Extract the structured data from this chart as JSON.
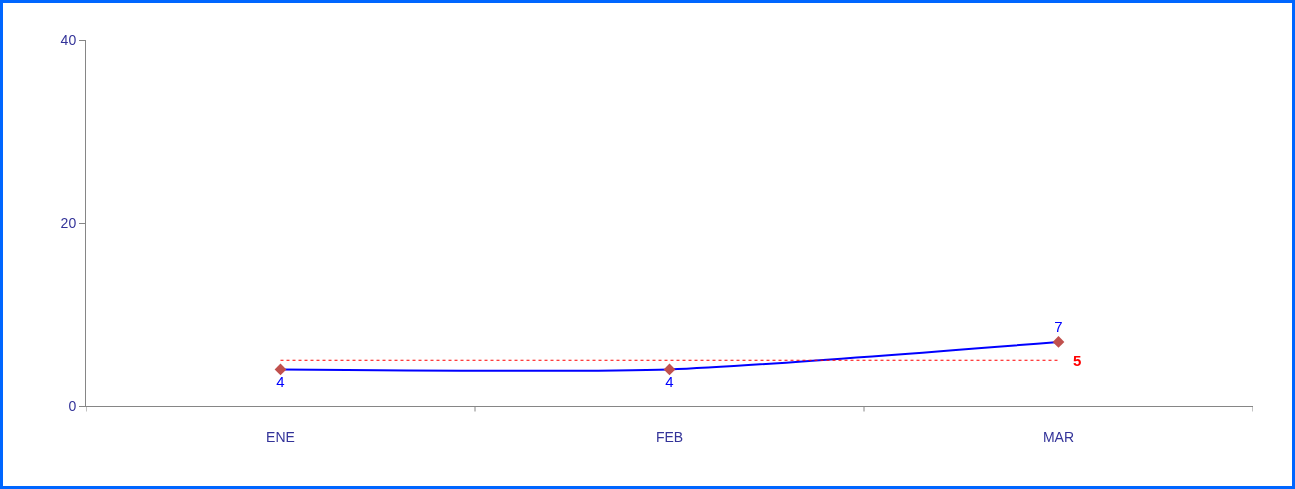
{
  "chart_data": {
    "type": "line",
    "categories": [
      "ENE",
      "FEB",
      "MAR"
    ],
    "series": [
      {
        "color": "#0000ff",
        "values": [
          4,
          4,
          7
        ]
      }
    ],
    "marker": "diamond",
    "data_labels": true,
    "line_style": "solid",
    "ylim": [
      0,
      40
    ],
    "yticks": [
      0,
      20,
      40
    ],
    "grid": false,
    "legend": false,
    "ref_lines": [
      {
        "axis": "y",
        "value": 5,
        "label": "5",
        "color": "#ff0000",
        "line_style": "dotted"
      }
    ]
  }
}
